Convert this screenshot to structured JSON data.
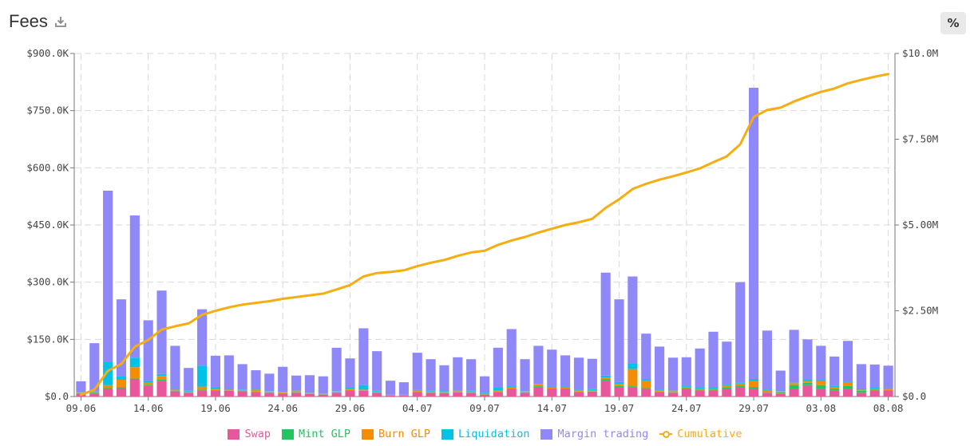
{
  "header": {
    "title": "Fees",
    "percent_toggle_label": "%"
  },
  "icons": {
    "download": "download-icon"
  },
  "colors": {
    "swap": "#e8569b",
    "mint_glp": "#22c55e",
    "burn_glp": "#f48c06",
    "liquidation": "#00c2e8",
    "margin_trading": "#8e88f8",
    "cumulative": "#f5ad12",
    "grid": "#d9d9d9",
    "axis": "#777777"
  },
  "legend": [
    {
      "label": "Swap",
      "color": "#e8569b",
      "kind": "box"
    },
    {
      "label": "Mint GLP",
      "color": "#22c55e",
      "kind": "box"
    },
    {
      "label": "Burn GLP",
      "color": "#f48c06",
      "kind": "box"
    },
    {
      "label": "Liquidation",
      "color": "#00c2e8",
      "kind": "box"
    },
    {
      "label": "Margin trading",
      "color": "#8e88f8",
      "kind": "box"
    },
    {
      "label": "Cumulative",
      "color": "#f5ad12",
      "kind": "line"
    }
  ],
  "chart_data": {
    "type": "bar",
    "stacked": true,
    "title": "Fees",
    "x_tick_labels": [
      "09.06",
      "14.06",
      "19.06",
      "24.06",
      "29.06",
      "04.07",
      "09.07",
      "14.07",
      "19.07",
      "24.07",
      "29.07",
      "03.08",
      "08.08"
    ],
    "y_left": {
      "ylim": [
        0,
        900000
      ],
      "ticks": [
        0,
        150000,
        300000,
        450000,
        600000,
        750000,
        900000
      ],
      "tick_labels": [
        "$0.0",
        "$150.0K",
        "$300.0K",
        "$450.0K",
        "$600.0K",
        "$750.0K",
        "$900.0K"
      ]
    },
    "y_right": {
      "ylim": [
        0,
        10000000
      ],
      "ticks": [
        0,
        2500000,
        5000000,
        7500000,
        10000000
      ],
      "tick_labels": [
        "$0.0",
        "$2.50M",
        "$5.00M",
        "$7.50M",
        "$10.0M"
      ]
    },
    "grid": true,
    "legend_position": "bottom",
    "categories": [
      "09.06",
      "10.06",
      "11.06",
      "12.06",
      "13.06",
      "14.06",
      "15.06",
      "16.06",
      "17.06",
      "18.06",
      "19.06",
      "20.06",
      "21.06",
      "22.06",
      "23.06",
      "24.06",
      "25.06",
      "26.06",
      "27.06",
      "28.06",
      "29.06",
      "30.06",
      "01.07",
      "02.07",
      "03.07",
      "04.07",
      "05.07",
      "06.07",
      "07.07",
      "08.07",
      "09.07",
      "10.07",
      "11.07",
      "12.07",
      "13.07",
      "14.07",
      "15.07",
      "16.07",
      "17.07",
      "18.07",
      "19.07",
      "20.07",
      "21.07",
      "22.07",
      "23.07",
      "24.07",
      "25.07",
      "26.07",
      "27.07",
      "28.07",
      "29.07",
      "30.07",
      "31.07",
      "01.08",
      "02.08",
      "03.08",
      "04.08",
      "05.08",
      "06.08",
      "07.08",
      "08.08"
    ],
    "series": [
      {
        "name": "Swap",
        "axis": "left",
        "values": [
          8000,
          8000,
          20000,
          22000,
          45000,
          28000,
          40000,
          14000,
          10000,
          16000,
          15000,
          15000,
          14000,
          12000,
          10000,
          8000,
          10000,
          7000,
          5000,
          10000,
          15000,
          15000,
          10000,
          3000,
          3000,
          12000,
          10000,
          9000,
          11000,
          10000,
          5000,
          12000,
          20000,
          10000,
          25000,
          20000,
          20000,
          12000,
          13000,
          40000,
          25000,
          25000,
          20000,
          12000,
          10000,
          20000,
          15000,
          15000,
          20000,
          25000,
          20000,
          10000,
          8000,
          20000,
          30000,
          20000,
          15000,
          20000,
          10000,
          15000,
          15000
        ]
      },
      {
        "name": "Mint GLP",
        "axis": "left",
        "values": [
          1000,
          2000,
          2000,
          2000,
          2000,
          3000,
          4000,
          1000,
          1000,
          2000,
          2000,
          1000,
          1000,
          1000,
          1000,
          1000,
          1000,
          1000,
          1000,
          1000,
          2000,
          1000,
          1000,
          500,
          500,
          1000,
          1000,
          1000,
          1000,
          1000,
          1000,
          1000,
          1000,
          1000,
          2000,
          1000,
          1000,
          1000,
          1000,
          5000,
          3000,
          2000,
          2000,
          1000,
          1000,
          2000,
          3000,
          3000,
          3000,
          4000,
          5000,
          2000,
          2000,
          10000,
          6000,
          10000,
          5000,
          8000,
          5000,
          3000,
          2000
        ]
      },
      {
        "name": "Burn GLP",
        "axis": "left",
        "values": [
          1000,
          2000,
          8000,
          20000,
          30000,
          5000,
          10000,
          3000,
          2000,
          8000,
          3000,
          2000,
          2000,
          5000,
          2000,
          2000,
          3000,
          1000,
          1000,
          2000,
          3000,
          2000,
          2000,
          500,
          500,
          2000,
          2000,
          2000,
          2000,
          2000,
          1000,
          2000,
          3000,
          2000,
          5000,
          3000,
          3000,
          3000,
          3000,
          5000,
          5000,
          45000,
          20000,
          3000,
          3000,
          3000,
          3000,
          3000,
          5000,
          5000,
          15000,
          3000,
          3000,
          5000,
          5000,
          10000,
          5000,
          8000,
          3000,
          3000,
          3000
        ]
      },
      {
        "name": "Liquidation",
        "axis": "left",
        "values": [
          1000,
          1000,
          60000,
          10000,
          25000,
          5000,
          5000,
          2000,
          2000,
          55000,
          3000,
          2000,
          1000,
          2000,
          1000,
          1000,
          1000,
          1000,
          1000,
          1000,
          3000,
          12000,
          2000,
          500,
          500,
          2000,
          2000,
          2000,
          1000,
          2000,
          3000,
          8000,
          3000,
          1000,
          1000,
          2000,
          2000,
          2000,
          2000,
          5000,
          5000,
          15000,
          3000,
          2000,
          1000,
          2000,
          2000,
          2000,
          3000,
          3000,
          5000,
          3000,
          1000,
          2000,
          3000,
          3000,
          3000,
          3000,
          3000,
          2000,
          1000
        ]
      },
      {
        "name": "Margin trading",
        "axis": "left",
        "values": [
          29000,
          127000,
          450000,
          201000,
          373000,
          159000,
          219000,
          113000,
          60000,
          148000,
          84000,
          88000,
          67000,
          49000,
          46000,
          66000,
          40000,
          46000,
          45000,
          114000,
          77000,
          149000,
          104000,
          37000,
          33000,
          98000,
          83000,
          68000,
          88000,
          83000,
          43000,
          105000,
          150000,
          84000,
          100000,
          97000,
          82000,
          84000,
          80000,
          270000,
          217000,
          228000,
          120000,
          113000,
          87000,
          76000,
          103000,
          147000,
          113000,
          263000,
          765000,
          155000,
          54000,
          138000,
          106000,
          90000,
          77000,
          107000,
          64000,
          61000,
          60000
        ]
      },
      {
        "name": "Cumulative",
        "axis": "right",
        "kind": "line",
        "values": [
          50000,
          200000,
          750000,
          950000,
          1450000,
          1650000,
          1950000,
          2050000,
          2130000,
          2380000,
          2500000,
          2600000,
          2680000,
          2730000,
          2780000,
          2850000,
          2900000,
          2950000,
          3000000,
          3120000,
          3250000,
          3500000,
          3600000,
          3630000,
          3680000,
          3800000,
          3900000,
          3980000,
          4100000,
          4200000,
          4250000,
          4420000,
          4550000,
          4650000,
          4780000,
          4890000,
          5000000,
          5080000,
          5180000,
          5500000,
          5750000,
          6050000,
          6200000,
          6320000,
          6420000,
          6530000,
          6650000,
          6830000,
          7000000,
          7350000,
          8150000,
          8350000,
          8420000,
          8600000,
          8750000,
          8880000,
          8980000,
          9130000,
          9230000,
          9320000,
          9400000
        ]
      }
    ]
  }
}
